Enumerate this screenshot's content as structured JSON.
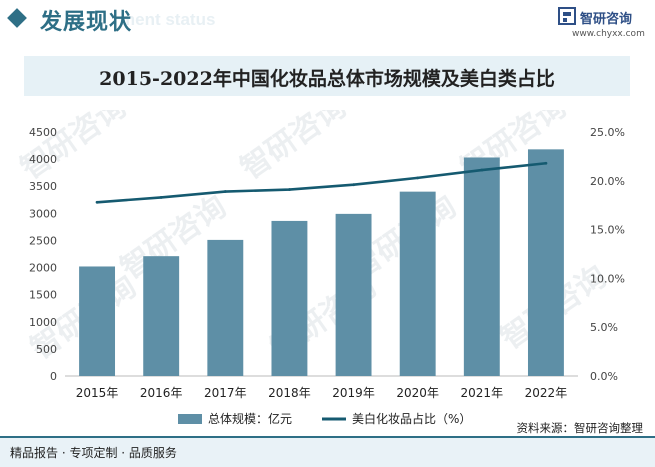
{
  "header": {
    "title": "发展现状",
    "subtitle": "ment status",
    "logo_name": "智研咨询",
    "logo_url": "www.chyxx.com"
  },
  "colors": {
    "bar": "#5e8fa6",
    "line": "#155a70",
    "accent": "#2e6f86"
  },
  "chart_data": {
    "type": "bar",
    "title": "2015-2022年中国化妆品总体市场规模及美白类占比",
    "categories": [
      "2015年",
      "2016年",
      "2017年",
      "2018年",
      "2019年",
      "2020年",
      "2021年",
      "2022年"
    ],
    "series": [
      {
        "name": "总体规模：亿元",
        "kind": "bar",
        "axis": "left",
        "values": [
          2020,
          2210,
          2510,
          2860,
          2990,
          3400,
          4030,
          4180
        ]
      },
      {
        "name": "美白化妆品占比（%）",
        "kind": "line",
        "axis": "right",
        "values": [
          17.8,
          18.3,
          18.9,
          19.1,
          19.6,
          20.3,
          21.1,
          21.8
        ]
      }
    ],
    "ylim_left": [
      0,
      4500
    ],
    "yticks_left": [
      "0",
      "500",
      "1000",
      "1500",
      "2000",
      "2500",
      "3000",
      "3500",
      "4000",
      "4500"
    ],
    "ylim_right": [
      0,
      25
    ],
    "yticks_right": [
      "0.0%",
      "5.0%",
      "10.0%",
      "15.0%",
      "20.0%",
      "25.0%"
    ],
    "legend_position": "bottom"
  },
  "watermark": "智研咨询",
  "source": "资料来源：智研咨询整理",
  "footer": {
    "left": "精品报告 · 专项定制 · 品质服务"
  }
}
